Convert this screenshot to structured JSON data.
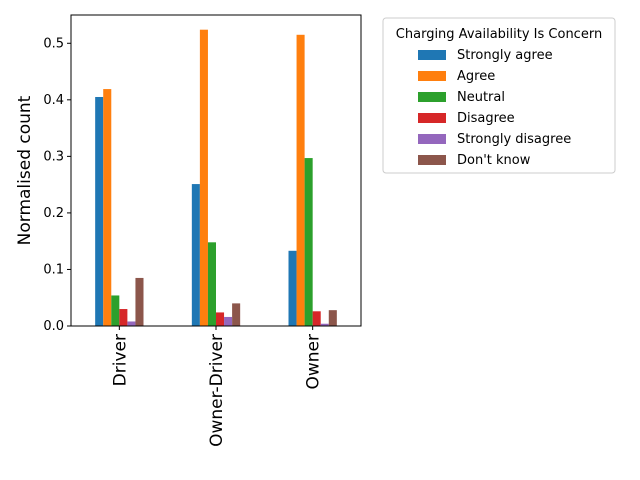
{
  "chart_data": {
    "type": "bar",
    "categories": [
      "Driver",
      "Owner-Driver",
      "Owner"
    ],
    "ylabel": "Normalised count",
    "xlabel": "",
    "ylim": [
      0,
      0.55
    ],
    "yticks": [
      0.0,
      0.1,
      0.2,
      0.3,
      0.4,
      0.5
    ],
    "ytick_labels": [
      "0.0",
      "0.1",
      "0.2",
      "0.3",
      "0.4",
      "0.5"
    ],
    "grid": false,
    "legend": {
      "title": "Charging Availability Is Concern",
      "placement": "outside-right"
    },
    "series": [
      {
        "name": "Strongly agree",
        "color": "#1f77b4",
        "values": [
          0.405,
          0.251,
          0.133
        ]
      },
      {
        "name": "Agree",
        "color": "#ff7f0e",
        "values": [
          0.419,
          0.524,
          0.515
        ]
      },
      {
        "name": "Neutral",
        "color": "#2ca02c",
        "values": [
          0.054,
          0.148,
          0.297
        ]
      },
      {
        "name": "Disagree",
        "color": "#d62728",
        "values": [
          0.03,
          0.024,
          0.026
        ]
      },
      {
        "name": "Strongly disagree",
        "color": "#9467bd",
        "values": [
          0.008,
          0.016,
          0.004
        ]
      },
      {
        "name": "Don't know",
        "color": "#8c564b",
        "values": [
          0.085,
          0.04,
          0.028
        ]
      }
    ]
  }
}
